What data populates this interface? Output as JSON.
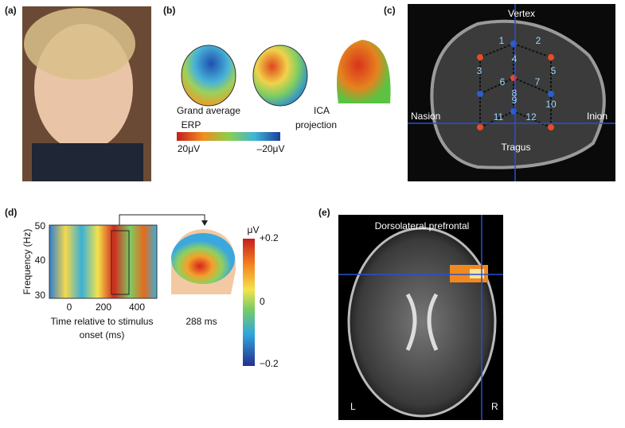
{
  "panels": {
    "a": {
      "label": "(a)"
    },
    "b": {
      "label": "(b)",
      "left_caption": [
        "Grand average",
        "ERP"
      ],
      "right_caption": [
        "ICA",
        "projection"
      ],
      "colorbar": {
        "left": "20μV",
        "right": "–20μV"
      }
    },
    "c": {
      "label": "(c)",
      "landmarks": {
        "top": "Vertex",
        "left": "Nasion",
        "right": "Inion",
        "bottom": "Tragus"
      },
      "electrodes": [
        "1",
        "2",
        "3",
        "4",
        "5",
        "6",
        "7",
        "8",
        "9",
        "10",
        "11",
        "12"
      ]
    },
    "d": {
      "label": "(d)",
      "y_axis_label": "Frequency (Hz)",
      "yticks": [
        "50",
        "40",
        "30"
      ],
      "xticks": [
        "0",
        "200",
        "400"
      ],
      "x_axis_label": [
        "Time relative to stimulus",
        "onset (ms)"
      ],
      "head_caption": "288 ms",
      "colorbar": {
        "unit": "μV",
        "ticks": [
          "+0.2",
          "0",
          "−0.2"
        ]
      }
    },
    "e": {
      "label": "(e)",
      "region": "Dorsolateral prefrontal",
      "left": "L",
      "right": "R"
    }
  }
}
